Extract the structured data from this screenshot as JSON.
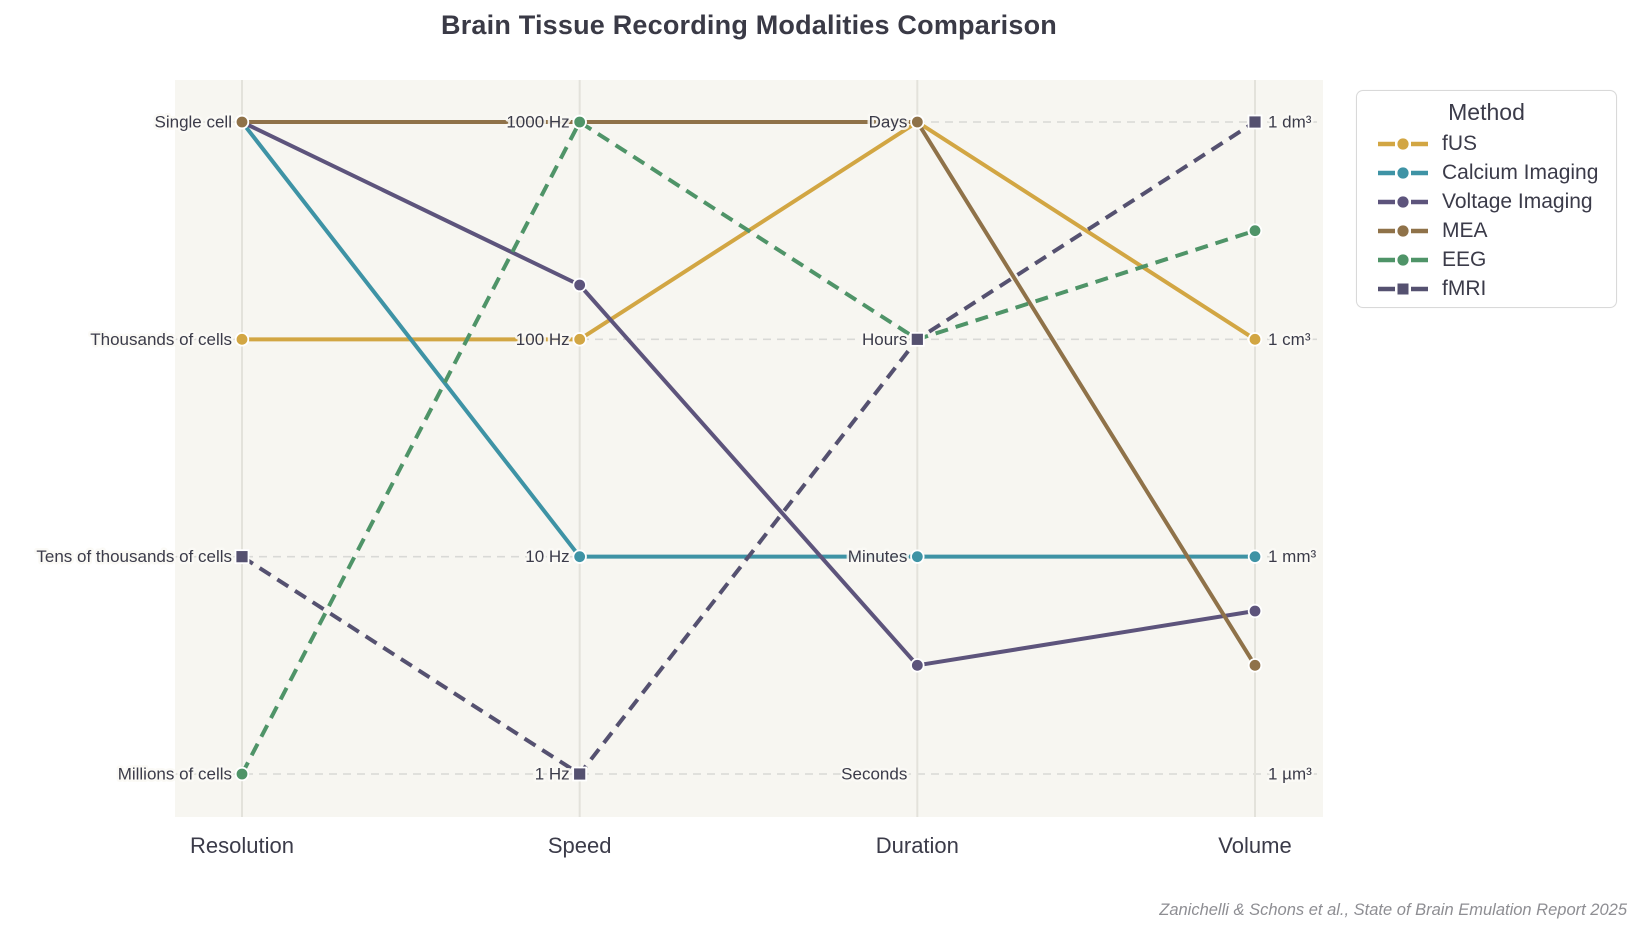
{
  "title": "Brain Tissue Recording Modalities Comparison",
  "caption": "Zanichelli & Schons et al., State of Brain Emulation Report 2025",
  "chart_data": {
    "type": "line",
    "subtype": "parallel-coordinates",
    "legend_title": "Method",
    "legend_position": "outside-right-top",
    "grid": "dashed horizontal gridline at every tick level",
    "plot_bg": "#F7F6F1",
    "grid_color": "#D9D9D6",
    "axis_line_color": "#E3E2DB",
    "text_color": "#3B3B49",
    "value_convention": "values are tick units measured from the top tick of each axis: 0 = top tick, 3 = bottom tick; fractional values fall between labeled ticks",
    "axes": [
      {
        "name": "Resolution",
        "tick_side": "left",
        "ticks": [
          "Single cell",
          "Thousands of cells",
          "Tens of thousands of cells",
          "Millions of cells"
        ]
      },
      {
        "name": "Speed",
        "tick_side": "left",
        "ticks": [
          "1000 Hz",
          "100 Hz",
          "10 Hz",
          "1 Hz"
        ]
      },
      {
        "name": "Duration",
        "tick_side": "left",
        "ticks": [
          "Days",
          "Hours",
          "Minutes",
          "Seconds"
        ]
      },
      {
        "name": "Volume",
        "tick_side": "right",
        "ticks": [
          "1 dm³",
          "1 cm³",
          "1 mm³",
          "1 µm³"
        ]
      }
    ],
    "series": [
      {
        "name": "fUS",
        "color": "#D2A643",
        "dashed": false,
        "marker": "circle",
        "values": [
          1,
          1,
          0,
          1
        ],
        "readings": {
          "Resolution": "Thousands of cells",
          "Speed": "100 Hz",
          "Duration": "Days",
          "Volume": "1 cm³"
        }
      },
      {
        "name": "Calcium Imaging",
        "color": "#3E93A5",
        "dashed": false,
        "marker": "circle",
        "values": [
          0,
          2,
          2,
          2
        ],
        "readings": {
          "Resolution": "Single cell",
          "Speed": "10 Hz",
          "Duration": "Minutes",
          "Volume": "1 mm³"
        }
      },
      {
        "name": "Voltage Imaging",
        "color": "#5D547C",
        "dashed": false,
        "marker": "circle",
        "values": [
          0,
          0.75,
          2.5,
          2.25
        ],
        "readings": {
          "Resolution": "Single cell",
          "Speed": "between 1000 Hz and 100 Hz (3/4 toward 100 Hz)",
          "Duration": "between Minutes and Seconds",
          "Volume": "between 1 mm³ and 1 µm³ (1/4 below 1 mm³)"
        }
      },
      {
        "name": "MEA",
        "color": "#8F7249",
        "dashed": false,
        "marker": "circle",
        "values": [
          0,
          0,
          0,
          2.5
        ],
        "readings": {
          "Resolution": "Single cell",
          "Speed": "1000 Hz",
          "Duration": "Days",
          "Volume": "between 1 mm³ and 1 µm³"
        }
      },
      {
        "name": "EEG",
        "color": "#4F9468",
        "dashed": true,
        "marker": "circle",
        "values": [
          3,
          0,
          1,
          0.5
        ],
        "readings": {
          "Resolution": "Millions of cells",
          "Speed": "1000 Hz",
          "Duration": "Hours",
          "Volume": "between 1 dm³ and 1 cm³"
        }
      },
      {
        "name": "fMRI",
        "color": "#555170",
        "dashed": true,
        "marker": "square",
        "values": [
          2,
          3,
          1,
          0
        ],
        "readings": {
          "Resolution": "Tens of thousands of cells",
          "Speed": "1 Hz",
          "Duration": "Hours",
          "Volume": "1 dm³"
        }
      }
    ]
  }
}
